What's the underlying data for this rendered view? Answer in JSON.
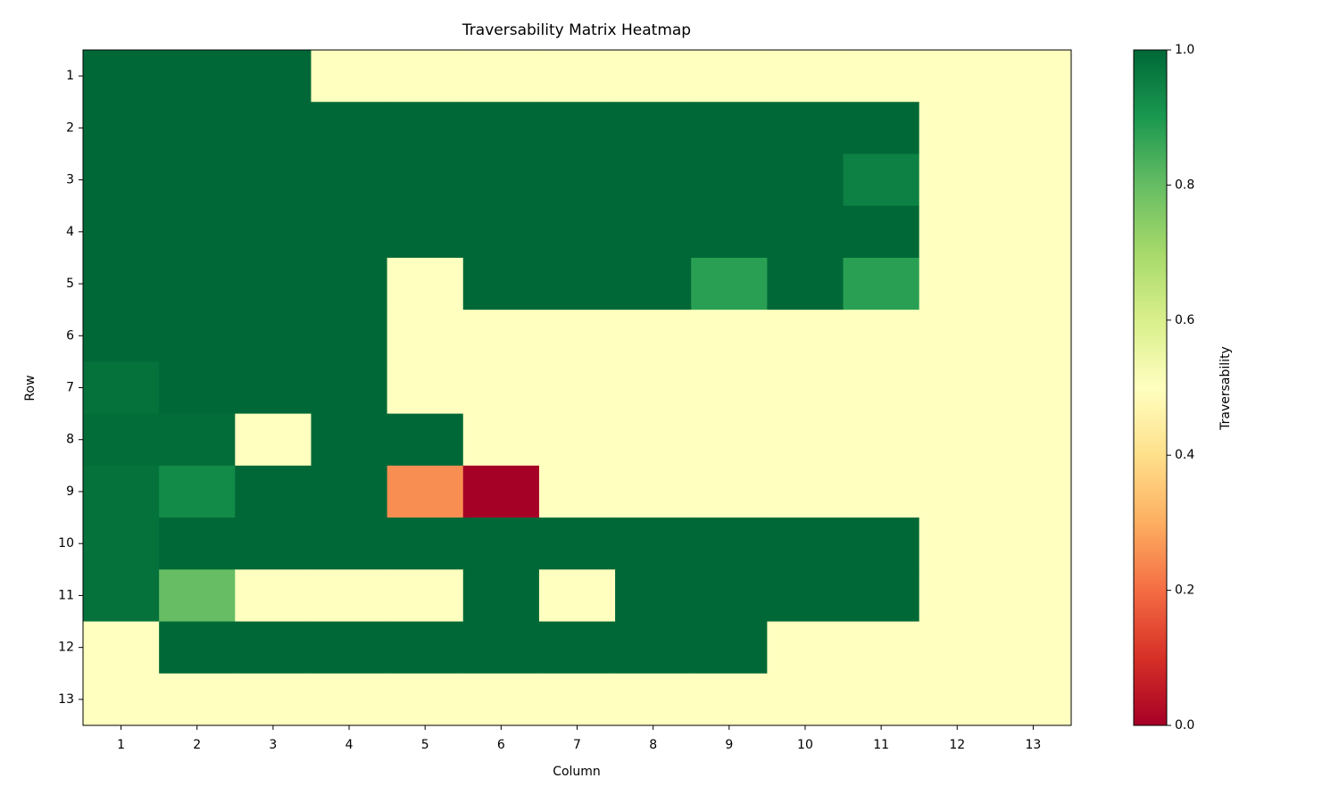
{
  "chart_data": {
    "type": "heatmap",
    "title": "Traversability Matrix Heatmap",
    "xlabel": "Column",
    "ylabel": "Row",
    "x": [
      1,
      2,
      3,
      4,
      5,
      6,
      7,
      8,
      9,
      10,
      11,
      12,
      13
    ],
    "y": [
      1,
      2,
      3,
      4,
      5,
      6,
      7,
      8,
      9,
      10,
      11,
      12,
      13
    ],
    "values": [
      [
        1,
        1,
        1,
        0.5,
        0.5,
        0.5,
        0.5,
        0.5,
        0.5,
        0.5,
        0.5,
        0.5,
        0.5
      ],
      [
        1,
        1,
        1,
        1,
        1,
        1,
        1,
        1,
        1,
        1,
        1,
        0.5,
        0.5
      ],
      [
        1,
        1,
        1,
        1,
        1,
        1,
        1,
        1,
        1,
        1,
        0.95,
        0.5,
        0.5
      ],
      [
        1,
        1,
        1,
        1,
        1,
        1,
        1,
        1,
        1,
        1,
        1,
        0.5,
        0.5
      ],
      [
        1,
        1,
        1,
        1,
        0.5,
        1,
        1,
        1,
        0.88,
        1,
        0.88,
        0.5,
        0.5
      ],
      [
        1,
        1,
        1,
        1,
        0.5,
        0.5,
        0.5,
        0.5,
        0.5,
        0.5,
        0.5,
        0.5,
        0.5
      ],
      [
        0.98,
        1,
        1,
        1,
        0.5,
        0.5,
        0.5,
        0.5,
        0.5,
        0.5,
        0.5,
        0.5,
        0.5
      ],
      [
        0.99,
        0.99,
        0.5,
        1,
        1,
        0.5,
        0.5,
        0.5,
        0.5,
        0.5,
        0.5,
        0.5,
        0.5
      ],
      [
        0.98,
        0.93,
        1,
        1,
        0.25,
        0,
        0.5,
        0.5,
        0.5,
        0.5,
        0.5,
        0.5,
        0.5
      ],
      [
        0.98,
        1,
        1,
        1,
        1,
        1,
        1,
        1,
        1,
        1,
        1,
        0.5,
        0.5
      ],
      [
        0.98,
        0.8,
        0.5,
        0.5,
        0.5,
        1,
        0.5,
        1,
        1,
        1,
        1,
        0.5,
        0.5
      ],
      [
        0.5,
        1,
        1,
        1,
        1,
        1,
        1,
        1,
        1,
        0.5,
        0.5,
        0.5,
        0.5
      ],
      [
        0.5,
        0.5,
        0.5,
        0.5,
        0.5,
        0.5,
        0.5,
        0.5,
        0.5,
        0.5,
        0.5,
        0.5,
        0.5
      ]
    ],
    "colormap": [
      "#a50026",
      "#d73027",
      "#f46d43",
      "#fdae61",
      "#fee08b",
      "#ffffbf",
      "#d9ef8b",
      "#a6d96a",
      "#66bd63",
      "#1a9850",
      "#006837"
    ],
    "clim": [
      0,
      1
    ],
    "cticks": [
      {
        "value": 0,
        "label": "0.0"
      },
      0.2,
      0.4,
      0.6,
      0.8,
      {
        "value": 1,
        "label": "1.0"
      }
    ],
    "colorbar_label": "Traversability"
  }
}
